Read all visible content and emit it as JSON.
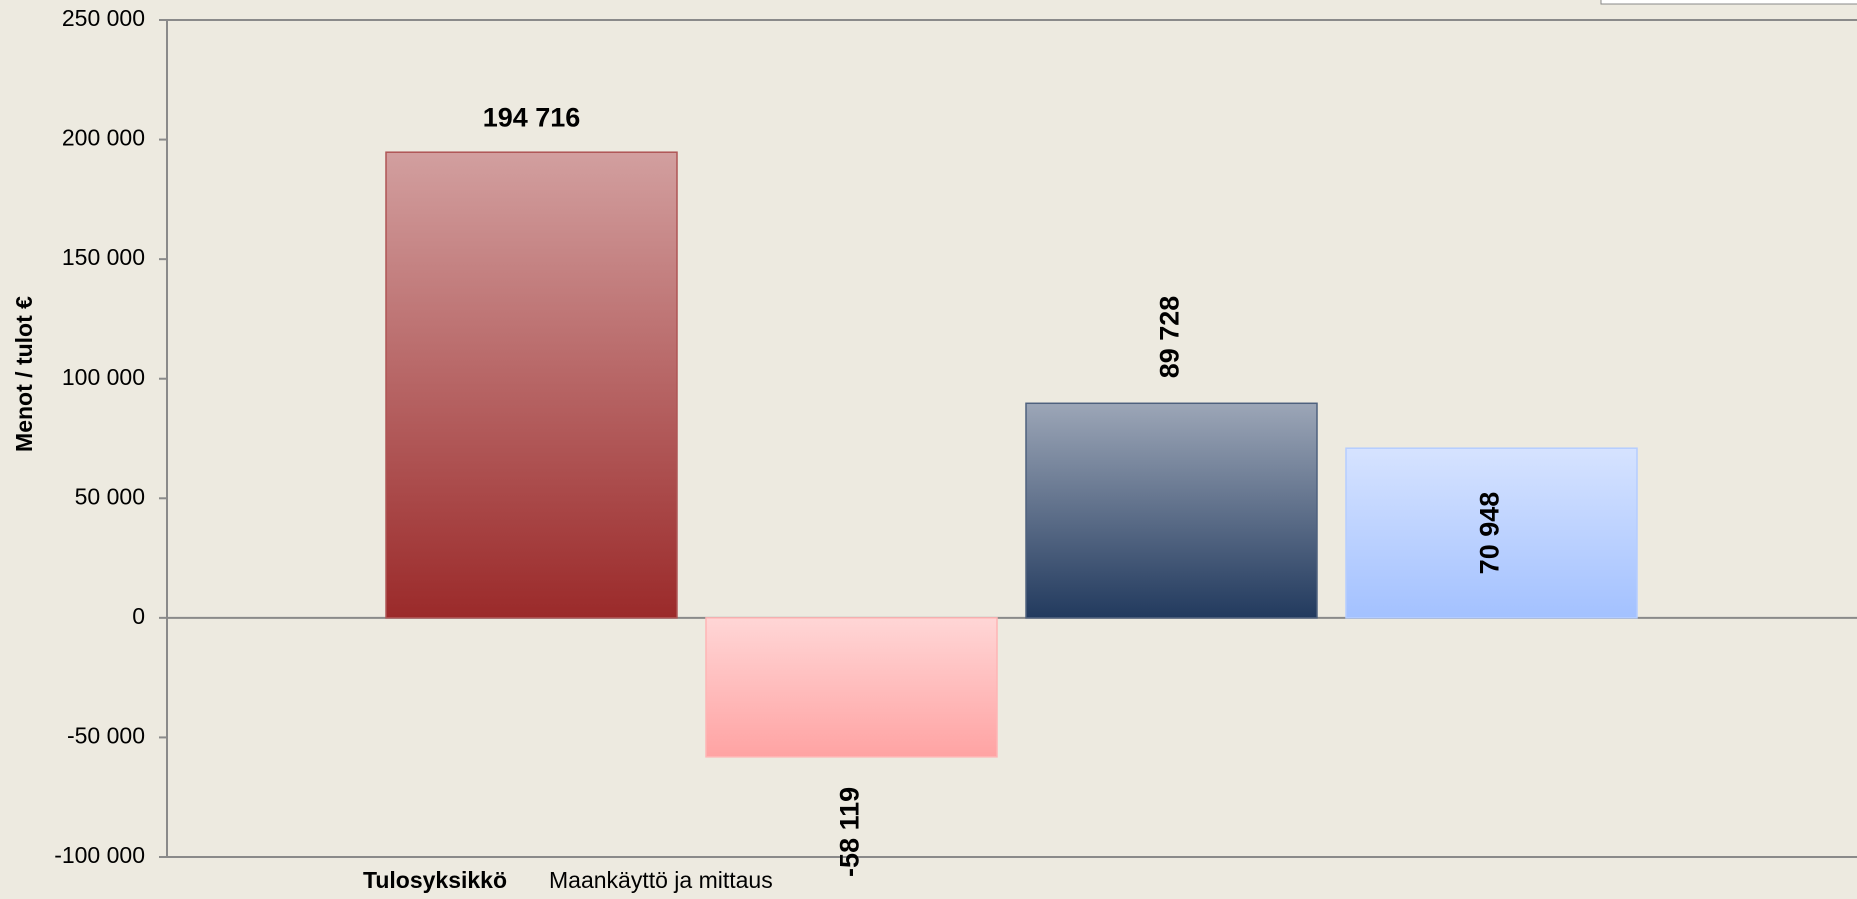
{
  "chart_data": {
    "type": "bar",
    "ylabel": "Menot / tulot €",
    "footer_label": "Tulosyksikkö",
    "footer_value": "Maankäyttö ja mittaus",
    "categories": [
      null,
      null,
      null,
      null
    ],
    "values": [
      194716,
      -58119,
      89728,
      70948
    ],
    "value_labels": [
      "194 716",
      "-58 119",
      "89 728",
      "70 948"
    ],
    "colors": [
      "#9b2a2a",
      "#ffa3a3",
      "#223a5e",
      "#a3c1ff"
    ],
    "ylim": [
      -100000,
      250000
    ],
    "yticks": [
      {
        "value": -100000,
        "label": "-100 000"
      },
      {
        "value": -50000,
        "label": "-50 000"
      },
      0,
      {
        "value": 50000,
        "label": "50 000"
      },
      {
        "value": 100000,
        "label": "100 000"
      },
      {
        "value": 150000,
        "label": "150 000"
      },
      {
        "value": 200000,
        "label": "200 000"
      },
      {
        "value": 250000,
        "label": "250 000"
      }
    ],
    "grid": false
  }
}
